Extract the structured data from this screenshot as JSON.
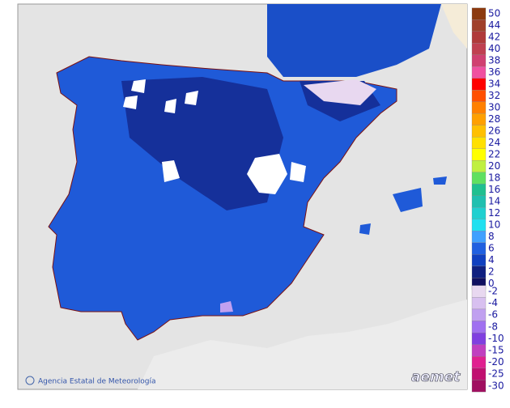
{
  "legend": {
    "items": [
      {
        "label": 50,
        "color": "#8b3a0f"
      },
      {
        "label": 44,
        "color": "#a0402a"
      },
      {
        "label": 42,
        "color": "#b03a3a"
      },
      {
        "label": 40,
        "color": "#c04050"
      },
      {
        "label": 38,
        "color": "#d04070"
      },
      {
        "label": 36,
        "color": "#f050a0"
      },
      {
        "label": 34,
        "color": "#ff0000"
      },
      {
        "label": 32,
        "color": "#ff5000"
      },
      {
        "label": 30,
        "color": "#ff8000"
      },
      {
        "label": 28,
        "color": "#ffa000"
      },
      {
        "label": 26,
        "color": "#ffc000"
      },
      {
        "label": 24,
        "color": "#ffe000"
      },
      {
        "label": 22,
        "color": "#ffff00"
      },
      {
        "label": 20,
        "color": "#c0f040"
      },
      {
        "label": 18,
        "color": "#60e060"
      },
      {
        "label": 16,
        "color": "#20c090"
      },
      {
        "label": 14,
        "color": "#20c0b0"
      },
      {
        "label": 12,
        "color": "#20d0d0"
      },
      {
        "label": 10,
        "color": "#20e0f0"
      },
      {
        "label": 8,
        "color": "#40a0ff"
      },
      {
        "label": 6,
        "color": "#2060e0"
      },
      {
        "label": 4,
        "color": "#1040c0"
      },
      {
        "label": 2,
        "color": "#102080"
      },
      {
        "label": 0,
        "color": "#101060"
      }
    ],
    "negative_items": [
      {
        "label": -2,
        "color": "#e8d8f0"
      },
      {
        "label": -4,
        "color": "#d8c0f0"
      },
      {
        "label": -6,
        "color": "#c0a0f0"
      },
      {
        "label": -8,
        "color": "#a070f0"
      },
      {
        "label": -10,
        "color": "#8040e0"
      },
      {
        "label": -15,
        "color": "#c040c0"
      },
      {
        "label": -20,
        "color": "#e02090"
      },
      {
        "label": -25,
        "color": "#c01070"
      },
      {
        "label": -30,
        "color": "#a01060"
      }
    ]
  },
  "footer": {
    "credit": "Agencia Estatal de Meteorología",
    "logo": "aemet"
  }
}
